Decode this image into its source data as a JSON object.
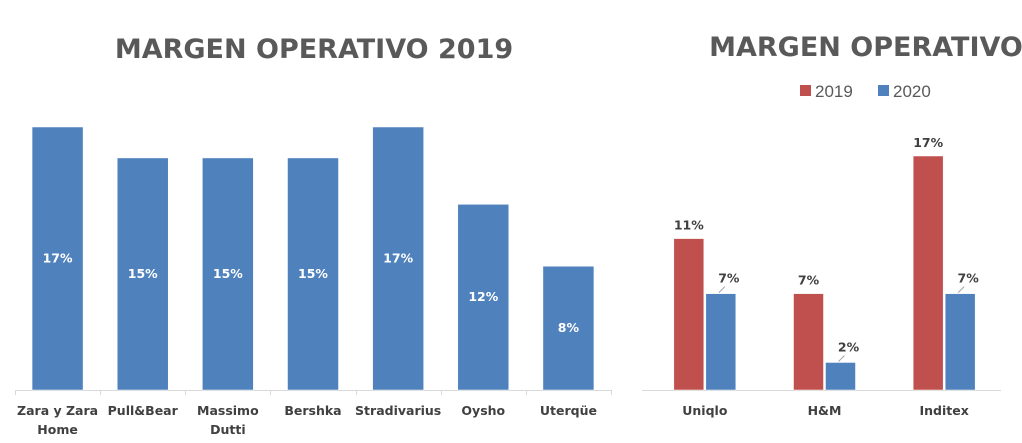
{
  "chart_data": [
    {
      "type": "bar",
      "title": "MARGEN OPERATIVO 2019",
      "categories": [
        "Zara y Zara Home",
        "Pull&Bear",
        "Massimo Dutti",
        "Bershka",
        "Stradivarius",
        "Oysho",
        "Uterqüe"
      ],
      "category_lines": [
        [
          "Zara y Zara",
          "Home"
        ],
        [
          "Pull&Bear"
        ],
        [
          "Massimo",
          "Dutti"
        ],
        [
          "Bershka"
        ],
        [
          "Stradivarius"
        ],
        [
          "Oysho"
        ],
        [
          "Uterqüe"
        ]
      ],
      "values": [
        17,
        15,
        15,
        15,
        17,
        12,
        8
      ],
      "labels": [
        "17%",
        "15%",
        "15%",
        "15%",
        "17%",
        "12%",
        "8%"
      ],
      "xlabel": "",
      "ylabel": "",
      "ylim": [
        0,
        17
      ],
      "grid": false,
      "legend": null,
      "data_label_position": "center",
      "color": "#4F81BD"
    },
    {
      "type": "bar",
      "title": "MARGEN OPERATIVO",
      "categories": [
        "Uniqlo",
        "H&M",
        "Inditex"
      ],
      "series": [
        {
          "name": "2019",
          "values": [
            11,
            7,
            17
          ],
          "labels": [
            "11%",
            "7%",
            "17%"
          ],
          "color": "#C0504D"
        },
        {
          "name": "2020",
          "values": [
            7,
            2,
            7
          ],
          "labels": [
            "7%",
            "2%",
            "7%"
          ],
          "color": "#4F81BD"
        }
      ],
      "xlabel": "",
      "ylabel": "",
      "ylim": [
        0,
        17
      ],
      "grid": false,
      "legend": "top",
      "data_label_position": "outside-end"
    }
  ]
}
